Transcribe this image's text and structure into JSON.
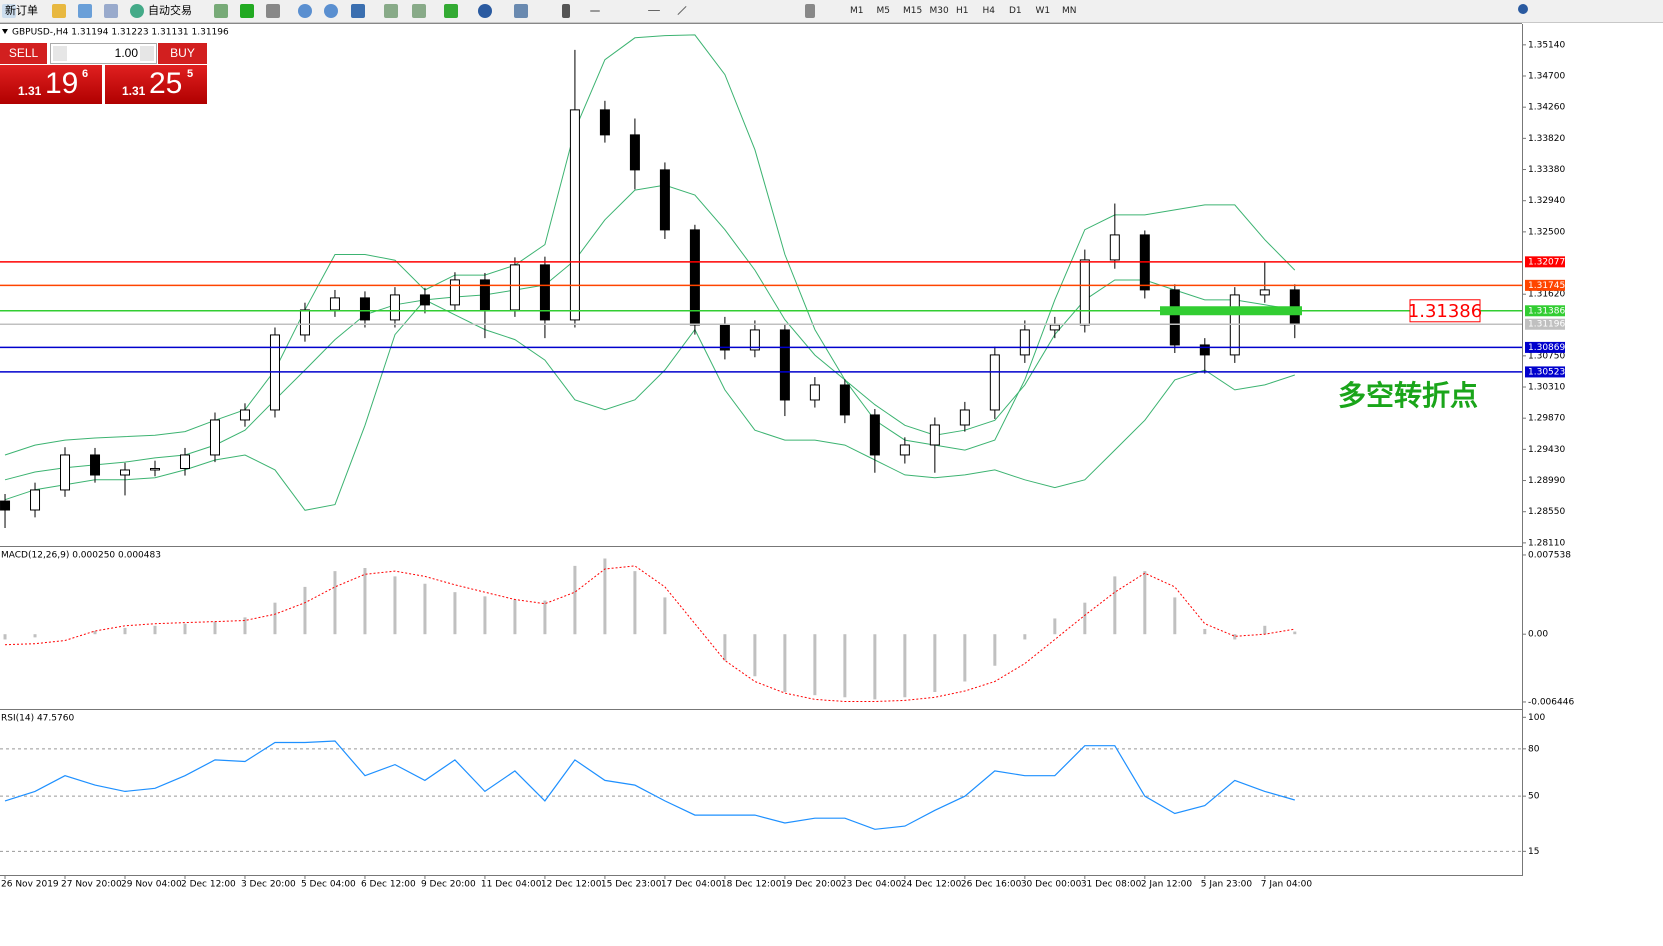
{
  "toolbar": {
    "new_order": "新订单",
    "auto_trading": "自动交易",
    "timeframes": [
      "M1",
      "M5",
      "M15",
      "M30",
      "H1",
      "H4",
      "D1",
      "W1",
      "MN"
    ]
  },
  "trade_panel": {
    "sell": "SELL",
    "buy": "BUY",
    "lots": "1.00",
    "bid": {
      "big": "1.31",
      "main": "19",
      "small": "6"
    },
    "ask": {
      "big": "1.31",
      "main": "25",
      "small": "5"
    }
  },
  "chart_data": [
    {
      "type": "candlestick",
      "title": "GBPUSD-,H4  1.31194 1.31223 1.31131 1.31196",
      "x": [
        0,
        4,
        8,
        12,
        16,
        20,
        24,
        28,
        32,
        36,
        40,
        44,
        48,
        52,
        56,
        60,
        64,
        68,
        72,
        76,
        80,
        84,
        88,
        92,
        96,
        100,
        104,
        108,
        112,
        116,
        120,
        124,
        128,
        132,
        136,
        140,
        144,
        148,
        152,
        156,
        160,
        164,
        168,
        172
      ],
      "open": [
        1.287,
        1.28574,
        1.28857,
        1.29351,
        1.29068,
        1.29139,
        1.2916,
        1.29351,
        1.29845,
        1.29986,
        1.31045,
        1.31398,
        1.31568,
        1.31257,
        1.3161,
        1.31469,
        1.31822,
        1.31398,
        1.32034,
        1.31257,
        1.34222,
        1.33869,
        1.33375,
        1.32528,
        1.31186,
        1.30833,
        1.31116,
        1.30127,
        1.30339,
        1.29916,
        1.29351,
        1.29492,
        1.29774,
        1.29986,
        1.30763,
        1.31116,
        1.31186,
        1.32104,
        1.32457,
        1.31681,
        1.30904,
        1.30763,
        1.3161,
        1.31681
      ],
      "high": [
        1.288,
        1.2896,
        1.2946,
        1.2945,
        1.2924,
        1.2927,
        1.2945,
        1.2995,
        1.3008,
        1.3115,
        1.315,
        1.3168,
        1.3166,
        1.3172,
        1.3171,
        1.3193,
        1.3192,
        1.3214,
        1.3215,
        1.35069,
        1.3435,
        1.341,
        1.3348,
        1.326,
        1.313,
        1.3125,
        1.312,
        1.3045,
        1.3042,
        1.3,
        1.296,
        1.2988,
        1.301,
        1.3088,
        1.3125,
        1.313,
        1.3225,
        1.329,
        1.3252,
        1.3176,
        1.31,
        1.3172,
        1.32077,
        1.3176
      ],
      "low": [
        1.2832,
        1.2847,
        1.2876,
        1.2896,
        1.2878,
        1.2905,
        1.2906,
        1.2925,
        1.2975,
        1.2988,
        1.3095,
        1.313,
        1.3115,
        1.3115,
        1.3135,
        1.3138,
        1.31,
        1.313,
        1.31,
        1.3115,
        1.3376,
        1.331,
        1.324,
        1.3105,
        1.307,
        1.3073,
        1.299,
        1.3002,
        1.298,
        1.291,
        1.2923,
        1.291,
        1.2968,
        1.2986,
        1.3065,
        1.31,
        1.3108,
        1.3198,
        1.3156,
        1.3079,
        1.305,
        1.3065,
        1.315,
        1.31
      ],
      "close": [
        1.28574,
        1.28857,
        1.29351,
        1.29068,
        1.29139,
        1.2916,
        1.29351,
        1.29845,
        1.29986,
        1.31045,
        1.31398,
        1.31568,
        1.31257,
        1.3161,
        1.31469,
        1.31822,
        1.31398,
        1.32034,
        1.31257,
        1.34222,
        1.33869,
        1.33375,
        1.32528,
        1.31186,
        1.30833,
        1.31116,
        1.30127,
        1.30339,
        1.29916,
        1.29351,
        1.29492,
        1.29774,
        1.29986,
        1.30763,
        1.31116,
        1.31186,
        1.32104,
        1.32457,
        1.31681,
        1.30904,
        1.30763,
        1.3161,
        1.31681,
        1.31196
      ],
      "bands": [
        {
          "color": "#3cb371",
          "values": [
            1.2935,
            1.2949,
            1.2956,
            1.2959,
            1.2961,
            1.2963,
            1.2968,
            1.2984,
            1.2999,
            1.3055,
            1.314,
            1.3218,
            1.3218,
            1.321,
            1.3168,
            1.3189,
            1.3189,
            1.3203,
            1.3232,
            1.3394,
            1.3493,
            1.3524,
            1.3527,
            1.3528,
            1.3472,
            1.3366,
            1.3218,
            1.3112,
            1.3041,
            1.2984,
            1.2956,
            1.2949,
            1.2942,
            1.2956,
            1.3041,
            1.3154,
            1.3253,
            1.3274,
            1.3274,
            1.3281,
            1.3288,
            1.3288,
            1.3239,
            1.3196
          ]
        },
        {
          "color": "#3cb371",
          "values": [
            1.29,
            1.2911,
            1.2917,
            1.2921,
            1.2925,
            1.2931,
            1.2935,
            1.2949,
            1.297,
            1.3013,
            1.3055,
            1.3098,
            1.3133,
            1.3147,
            1.3154,
            1.3158,
            1.3161,
            1.3168,
            1.3175,
            1.321,
            1.3267,
            1.3309,
            1.3316,
            1.3302,
            1.3253,
            1.3196,
            1.3126,
            1.3076,
            1.3041,
            1.3006,
            1.2977,
            1.2963,
            1.297,
            1.2984,
            1.3034,
            1.3105,
            1.3154,
            1.3182,
            1.3182,
            1.3168,
            1.3154,
            1.3154,
            1.3147,
            1.314
          ]
        },
        {
          "color": "#3cb371",
          "values": [
            1.2872,
            1.2886,
            1.2893,
            1.29,
            1.29,
            1.2903,
            1.2914,
            1.2928,
            1.2935,
            1.2914,
            1.2857,
            1.2865,
            1.2977,
            1.3105,
            1.3154,
            1.3133,
            1.3112,
            1.3098,
            1.3069,
            1.3013,
            1.2999,
            1.3013,
            1.3055,
            1.3112,
            1.3027,
            1.297,
            1.2956,
            1.2956,
            1.2949,
            1.2928,
            1.2907,
            1.2903,
            1.2907,
            1.2914,
            1.29,
            1.2889,
            1.29,
            1.2942,
            1.2984,
            1.3041,
            1.3055,
            1.3027,
            1.3034,
            1.3048
          ]
        }
      ],
      "levels": [
        {
          "value": 1.32077,
          "color": "#ff0000"
        },
        {
          "value": 1.31745,
          "color": "#ff4500"
        },
        {
          "value": 1.31386,
          "color": "#32cd32"
        },
        {
          "value": 1.31196,
          "color": "#c0c0c0"
        },
        {
          "value": 1.30869,
          "color": "#0000cd"
        },
        {
          "value": 1.30523,
          "color": "#0000cd"
        }
      ],
      "annotation": "多空转折点",
      "xlim": [
        -0.67,
        202.3
      ],
      "ylim": [
        1.2808,
        1.3542
      ],
      "yticks": [
        {
          "value": 1.3514,
          "label": "1.35140"
        },
        {
          "value": 1.347,
          "label": "1.34700"
        },
        {
          "value": 1.3426,
          "label": "1.34260"
        },
        {
          "value": 1.3382,
          "label": "1.33820"
        },
        {
          "value": 1.3338,
          "label": "1.33380"
        },
        {
          "value": 1.3294,
          "label": "1.32940"
        },
        {
          "value": 1.325,
          "label": "1.32500"
        },
        {
          "value": 1.3162,
          "label": "1.31620"
        },
        {
          "value": 1.3075,
          "label": "1.30750"
        },
        {
          "value": 1.3031,
          "label": "1.30310"
        },
        {
          "value": 1.2987,
          "label": "1.29870"
        },
        {
          "value": 1.2943,
          "label": "1.29430"
        },
        {
          "value": 1.2899,
          "label": "1.28990"
        },
        {
          "value": 1.2855,
          "label": "1.28550"
        },
        {
          "value": 1.2811,
          "label": "1.28110"
        }
      ],
      "xticks": [
        {
          "value": 0,
          "label": "26 Nov 2019"
        },
        {
          "value": 8,
          "label": "27 Nov 20:00"
        },
        {
          "value": 16,
          "label": "29 Nov 04:00"
        },
        {
          "value": 24,
          "label": "2 Dec 12:00"
        },
        {
          "value": 32,
          "label": "3 Dec 20:00"
        },
        {
          "value": 40,
          "label": "5 Dec 04:00"
        },
        {
          "value": 48,
          "label": "6 Dec 12:00"
        },
        {
          "value": 56,
          "label": "9 Dec 20:00"
        },
        {
          "value": 64,
          "label": "11 Dec 04:00"
        },
        {
          "value": 72,
          "label": "12 Dec 12:00"
        },
        {
          "value": 80,
          "label": "15 Dec 23:00"
        },
        {
          "value": 88,
          "label": "17 Dec 04:00"
        },
        {
          "value": 96,
          "label": "18 Dec 12:00"
        },
        {
          "value": 104,
          "label": "19 Dec 20:00"
        },
        {
          "value": 112,
          "label": "23 Dec 04:00"
        },
        {
          "value": 120,
          "label": "24 Dec 12:00"
        },
        {
          "value": 128,
          "label": "26 Dec 16:00"
        },
        {
          "value": 136,
          "label": "30 Dec 00:00"
        },
        {
          "value": 144,
          "label": "31 Dec 08:00"
        },
        {
          "value": 152,
          "label": "2 Jan 12:00"
        },
        {
          "value": 160,
          "label": "5 Jan 23:00"
        },
        {
          "value": 168,
          "label": "7 Jan 04:00"
        }
      ]
    },
    {
      "type": "macd",
      "title": "MACD(12,26,9) 0.000250 0.000483",
      "x": [
        0,
        4,
        8,
        12,
        16,
        20,
        24,
        28,
        32,
        36,
        40,
        44,
        48,
        52,
        56,
        60,
        64,
        68,
        72,
        76,
        80,
        84,
        88,
        92,
        96,
        100,
        104,
        108,
        112,
        116,
        120,
        124,
        128,
        132,
        136,
        140,
        144,
        148,
        152,
        156,
        160,
        164,
        168,
        172
      ],
      "histogram": {
        "color": "#c0c0c0",
        "values": [
          -0.0005,
          -0.0003,
          0.0,
          0.0003,
          0.0006,
          0.0008,
          0.001,
          0.0012,
          0.0016,
          0.003,
          0.0045,
          0.006,
          0.0063,
          0.0055,
          0.0048,
          0.004,
          0.0036,
          0.0033,
          0.0032,
          0.0065,
          0.0072,
          0.006,
          0.0035,
          0.0,
          -0.0025,
          -0.004,
          -0.0055,
          -0.0058,
          -0.006,
          -0.0062,
          -0.006,
          -0.0055,
          -0.0045,
          -0.003,
          -0.0005,
          0.0015,
          0.003,
          0.0055,
          0.006,
          0.0035,
          0.0005,
          -0.0005,
          0.0008,
          0.00025
        ]
      },
      "signal": {
        "color": "#ff0000",
        "values": [
          -0.001,
          -0.0009,
          -0.0006,
          0.0003,
          0.0008,
          0.001,
          0.0011,
          0.0012,
          0.0013,
          0.0019,
          0.003,
          0.0045,
          0.0057,
          0.006,
          0.0055,
          0.0047,
          0.004,
          0.0033,
          0.0029,
          0.004,
          0.0062,
          0.0065,
          0.0045,
          0.001,
          -0.0025,
          -0.0045,
          -0.0056,
          -0.0062,
          -0.0064,
          -0.0064,
          -0.0063,
          -0.006,
          -0.0054,
          -0.0045,
          -0.0028,
          -0.0005,
          0.0018,
          0.004,
          0.0058,
          0.0045,
          0.001,
          -0.0002,
          0.0,
          0.000483
        ]
      },
      "xlim": [
        -0.67,
        202.3
      ],
      "ylim": [
        -0.00702,
        0.0082
      ],
      "yticks": [
        0.007538,
        {
          "value": 0,
          "label": "0.00"
        },
        -0.006446
      ]
    },
    {
      "type": "line",
      "title": "RSI(14) 47.5760",
      "color": "#1e90ff",
      "x": [
        0,
        4,
        8,
        12,
        16,
        20,
        24,
        28,
        32,
        36,
        40,
        44,
        48,
        52,
        56,
        60,
        64,
        68,
        72,
        76,
        80,
        84,
        88,
        92,
        96,
        100,
        104,
        108,
        112,
        116,
        120,
        124,
        128,
        132,
        136,
        140,
        144,
        148,
        152,
        156,
        160,
        164,
        168,
        172
      ],
      "values": [
        47,
        53,
        63,
        57,
        53,
        55,
        63,
        73,
        72,
        84,
        84,
        85,
        63,
        70,
        60,
        73,
        53,
        66,
        47,
        73,
        60,
        57,
        47,
        38,
        38,
        38,
        33,
        36,
        36,
        29,
        31,
        41,
        50,
        66,
        63,
        63,
        82,
        82,
        50,
        39,
        44,
        60,
        53,
        47.576
      ],
      "levels": [
        80,
        50,
        15
      ],
      "xlim": [
        -0.67,
        202.3
      ],
      "ylim": [
        0,
        104
      ],
      "yticks": [
        100,
        80,
        50,
        15
      ]
    }
  ]
}
